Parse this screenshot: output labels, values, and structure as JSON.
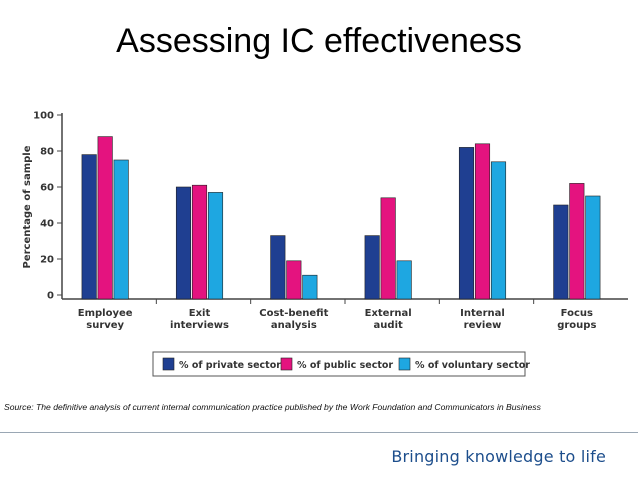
{
  "slide": {
    "title": "Assessing IC effectiveness",
    "source": "Source: The definitive analysis of current internal communication practice published by the Work Foundation and Communicators in Business",
    "tagline": "Bringing knowledge to life"
  },
  "chart_data": {
    "type": "bar",
    "title": "",
    "xlabel": "",
    "ylabel": "Percentage of sample",
    "ylim": [
      0,
      100
    ],
    "yticks": [
      0,
      20,
      40,
      60,
      80,
      100
    ],
    "categories": [
      [
        "Employee",
        "survey"
      ],
      [
        "Exit",
        "interviews"
      ],
      [
        "Cost-benefit",
        "analysis"
      ],
      [
        "External",
        "audit"
      ],
      [
        "Internal",
        "review"
      ],
      [
        "Focus",
        "groups"
      ]
    ],
    "series": [
      {
        "name": "% of private sector",
        "color": "#1f3f91",
        "values": [
          78,
          60,
          33,
          33,
          82,
          50
        ]
      },
      {
        "name": "% of public sector",
        "color": "#e4137f",
        "values": [
          88,
          61,
          19,
          54,
          84,
          62
        ]
      },
      {
        "name": "% of voluntary sector",
        "color": "#1ea7e1",
        "values": [
          75,
          57,
          11,
          19,
          74,
          55
        ]
      }
    ],
    "legend_position": "bottom"
  }
}
